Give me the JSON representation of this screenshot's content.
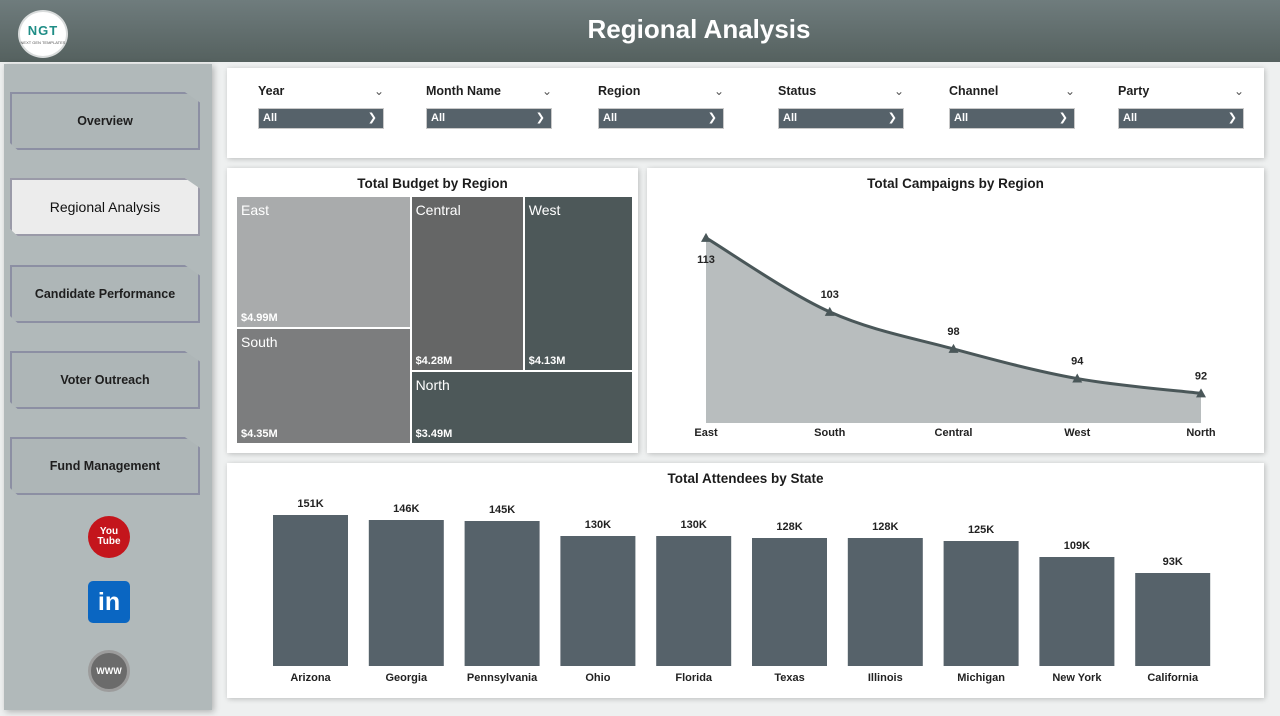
{
  "header": {
    "title": "Regional Analysis",
    "logo_text": "NGT",
    "logo_subtext": "NEXT GEN TEMPLATES"
  },
  "sidebar": {
    "items": [
      {
        "label": "Overview",
        "active": false
      },
      {
        "label": "Regional Analysis",
        "active": true
      },
      {
        "label": "Candidate Performance",
        "active": false
      },
      {
        "label": "Voter Outreach",
        "active": false
      },
      {
        "label": "Fund Management",
        "active": false
      }
    ],
    "social": [
      {
        "name": "youtube-icon",
        "text": "You Tube"
      },
      {
        "name": "linkedin-icon",
        "text": "in"
      },
      {
        "name": "website-icon",
        "text": "WWW"
      }
    ]
  },
  "filters": [
    {
      "label": "Year",
      "value": "All"
    },
    {
      "label": "Month Name",
      "value": "All"
    },
    {
      "label": "Region",
      "value": "All"
    },
    {
      "label": "Status",
      "value": "All"
    },
    {
      "label": "Channel",
      "value": "All"
    },
    {
      "label": "Party",
      "value": "All"
    }
  ],
  "colors": {
    "header_bg": "#5f6b6b",
    "sidebar_bg": "#b1b9ba",
    "bar": "#56626a",
    "area_fill": "#b8bdbe",
    "line": "#4a5759"
  },
  "chart_data": [
    {
      "type": "treemap",
      "title": "Total Budget by Region",
      "categories": [
        "East",
        "Central",
        "West",
        "South",
        "North"
      ],
      "values": [
        4.99,
        4.28,
        4.13,
        4.35,
        3.49
      ],
      "labels": [
        "$4.99M",
        "$4.28M",
        "$4.13M",
        "$4.35M",
        "$3.49M"
      ],
      "unit": "$M",
      "colors": [
        "#a9abac",
        "#656666",
        "#4d5859",
        "#7c7d7e",
        "#4d5859"
      ]
    },
    {
      "type": "area",
      "title": "Total Campaigns by Region",
      "categories": [
        "East",
        "South",
        "Central",
        "West",
        "North"
      ],
      "values": [
        113,
        103,
        98,
        94,
        92
      ],
      "labels": [
        "113",
        "103",
        "98",
        "94",
        "92"
      ],
      "ylim": [
        88,
        115
      ]
    },
    {
      "type": "bar",
      "title": "Total Attendees by State",
      "categories": [
        "Arizona",
        "Georgia",
        "Pennsylvania",
        "Ohio",
        "Florida",
        "Texas",
        "Illinois",
        "Michigan",
        "New York",
        "California"
      ],
      "values": [
        151000,
        146000,
        145000,
        130000,
        130000,
        128000,
        128000,
        125000,
        109000,
        93000
      ],
      "labels": [
        "151K",
        "146K",
        "145K",
        "130K",
        "130K",
        "128K",
        "128K",
        "125K",
        "109K",
        "93K"
      ],
      "ylim": [
        0,
        165000
      ]
    }
  ]
}
